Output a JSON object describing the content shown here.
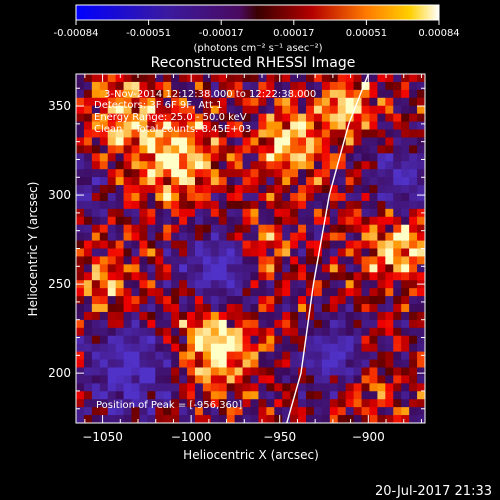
{
  "colorbar": {
    "ticks": [
      "-0.00084",
      "-0.00051",
      "-0.00017",
      "0.00017",
      "0.00051",
      "0.00084"
    ],
    "unit_label": "(photons cm⁻² s⁻¹ asec⁻²)"
  },
  "chart_data": {
    "type": "heatmap",
    "title": "Reconstructed RHESSI Image",
    "xlabel": "Heliocentric X (arcsec)",
    "ylabel": "Heliocentric Y (arcsec)",
    "xlim": [
      -1065,
      -868
    ],
    "ylim": [
      172,
      368
    ],
    "x_ticks": [
      -1050,
      -1000,
      -950,
      -900
    ],
    "y_ticks": [
      200,
      250,
      300,
      350
    ],
    "x_tick_labels": [
      "−1050",
      "−1000",
      "−950",
      "−900"
    ],
    "y_tick_labels": [
      "200",
      "250",
      "300",
      "350"
    ],
    "colorscale_range": [
      -0.00084,
      0.00084
    ],
    "info_lines": [
      "3-Nov-2014 12:12:38.000 to 12:22:38.000",
      "Detectors: 3F 6F 9F, Att 1",
      "Energy Range: 25.0 - 50.0 keV",
      "Clean    Total counts: 8.45E+03"
    ],
    "peak_label": "Position of Peak = [-956,360]",
    "peak_position": [
      -956,
      360
    ],
    "limb_points": [
      [
        -946,
        172
      ],
      [
        -938,
        200
      ],
      [
        -931,
        250
      ],
      [
        -922,
        300
      ],
      [
        -911,
        340
      ],
      [
        -900,
        368
      ]
    ],
    "legend": "none",
    "grid": false
  },
  "footer": {
    "timestamp": "20-Jul-2017 21:33"
  },
  "colors": {
    "background": "#000000",
    "axis": "#ffffff",
    "low": "#2020c0",
    "mid": "#400000",
    "high": "#ffffe0"
  }
}
